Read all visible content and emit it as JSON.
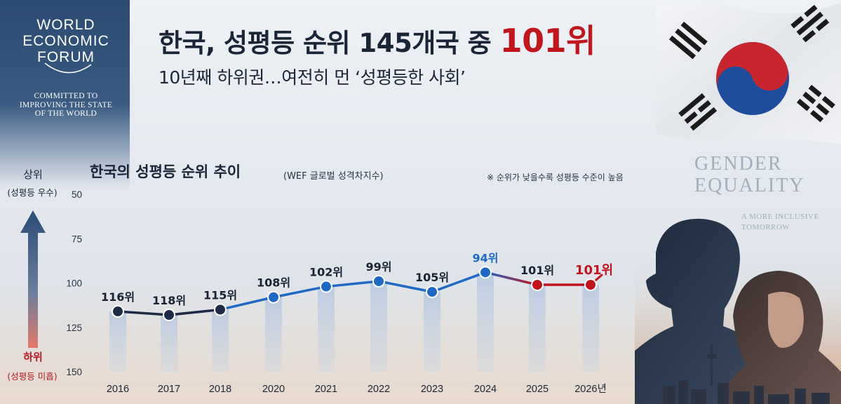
{
  "wef": {
    "logo_lines": [
      "WORLD",
      "ECONOMIC",
      "FORUM"
    ],
    "tagline_lines": [
      "COMMITTED TO",
      "IMPROVING THE STATE",
      "OF THE WORLD"
    ]
  },
  "headline": {
    "main": "한국, 성평등 순위 145개국 중 ",
    "highlight": "101위",
    "subtitle": "10년째 하위권…여전히 먼 ‘성평등한 사회’"
  },
  "side": {
    "gender_lines": [
      "GENDER",
      "EQUALITY"
    ],
    "gender_sub_lines": [
      "A MORE INCLUSIVE",
      "TOMORROW"
    ]
  },
  "axis_guide": {
    "top": "상위",
    "top_sub": "(성평등 우수)",
    "bottom": "하위",
    "bottom_sub": "(성평등 미흡)"
  },
  "chart_data": {
    "type": "line",
    "title": "한국의 성평등 순위 추이",
    "subtitle": "(WEF 글로벌 성격차지수)",
    "note": "※ 순위가 낮을수록 성평등 수준이 높음",
    "categories": [
      "2016",
      "2017",
      "2018",
      "2020",
      "2021",
      "2022",
      "2023",
      "2024",
      "2025",
      "2026년"
    ],
    "values": [
      116,
      118,
      115,
      108,
      102,
      99,
      105,
      94,
      101,
      101
    ],
    "data_labels": [
      "116위",
      "118위",
      "115위",
      "108위",
      "102위",
      "99위",
      "105위",
      "94위",
      "101위",
      "101위"
    ],
    "ylim": [
      50,
      150
    ],
    "y_inverted": true,
    "yticks": [
      50,
      75,
      100,
      125,
      150
    ],
    "grid": false,
    "colors": {
      "line_dark": "#1d2b47",
      "line_blue": "#1f68c4",
      "line_red": "#c1141d",
      "label_dark": "#1a2333",
      "label_blue": "#1f68c4",
      "label_red": "#c1141d"
    }
  },
  "colors": {
    "title_highlight": "#c0171f",
    "wef_panel": "#2c4a72"
  }
}
